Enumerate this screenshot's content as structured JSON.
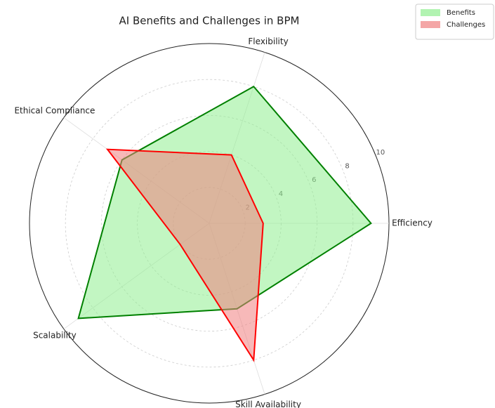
{
  "chart_data": {
    "type": "radar",
    "title": "AI Benefits and Challenges in BPM",
    "categories": [
      "Efficiency",
      "Flexibility",
      "Ethical Compliance",
      "Scalability",
      "Skill Availability"
    ],
    "series": [
      {
        "name": "Benefits",
        "color": "green",
        "fill_color": "#90ee90",
        "values": [
          9,
          8,
          6,
          9,
          5
        ]
      },
      {
        "name": "Challenges",
        "color": "red",
        "fill_color": "#f08080",
        "values": [
          3,
          4,
          7,
          2,
          8
        ]
      }
    ],
    "rlim": [
      0,
      10
    ],
    "rticks": [
      2,
      4,
      6,
      8,
      10
    ],
    "grid": true,
    "legend": "upper right"
  }
}
